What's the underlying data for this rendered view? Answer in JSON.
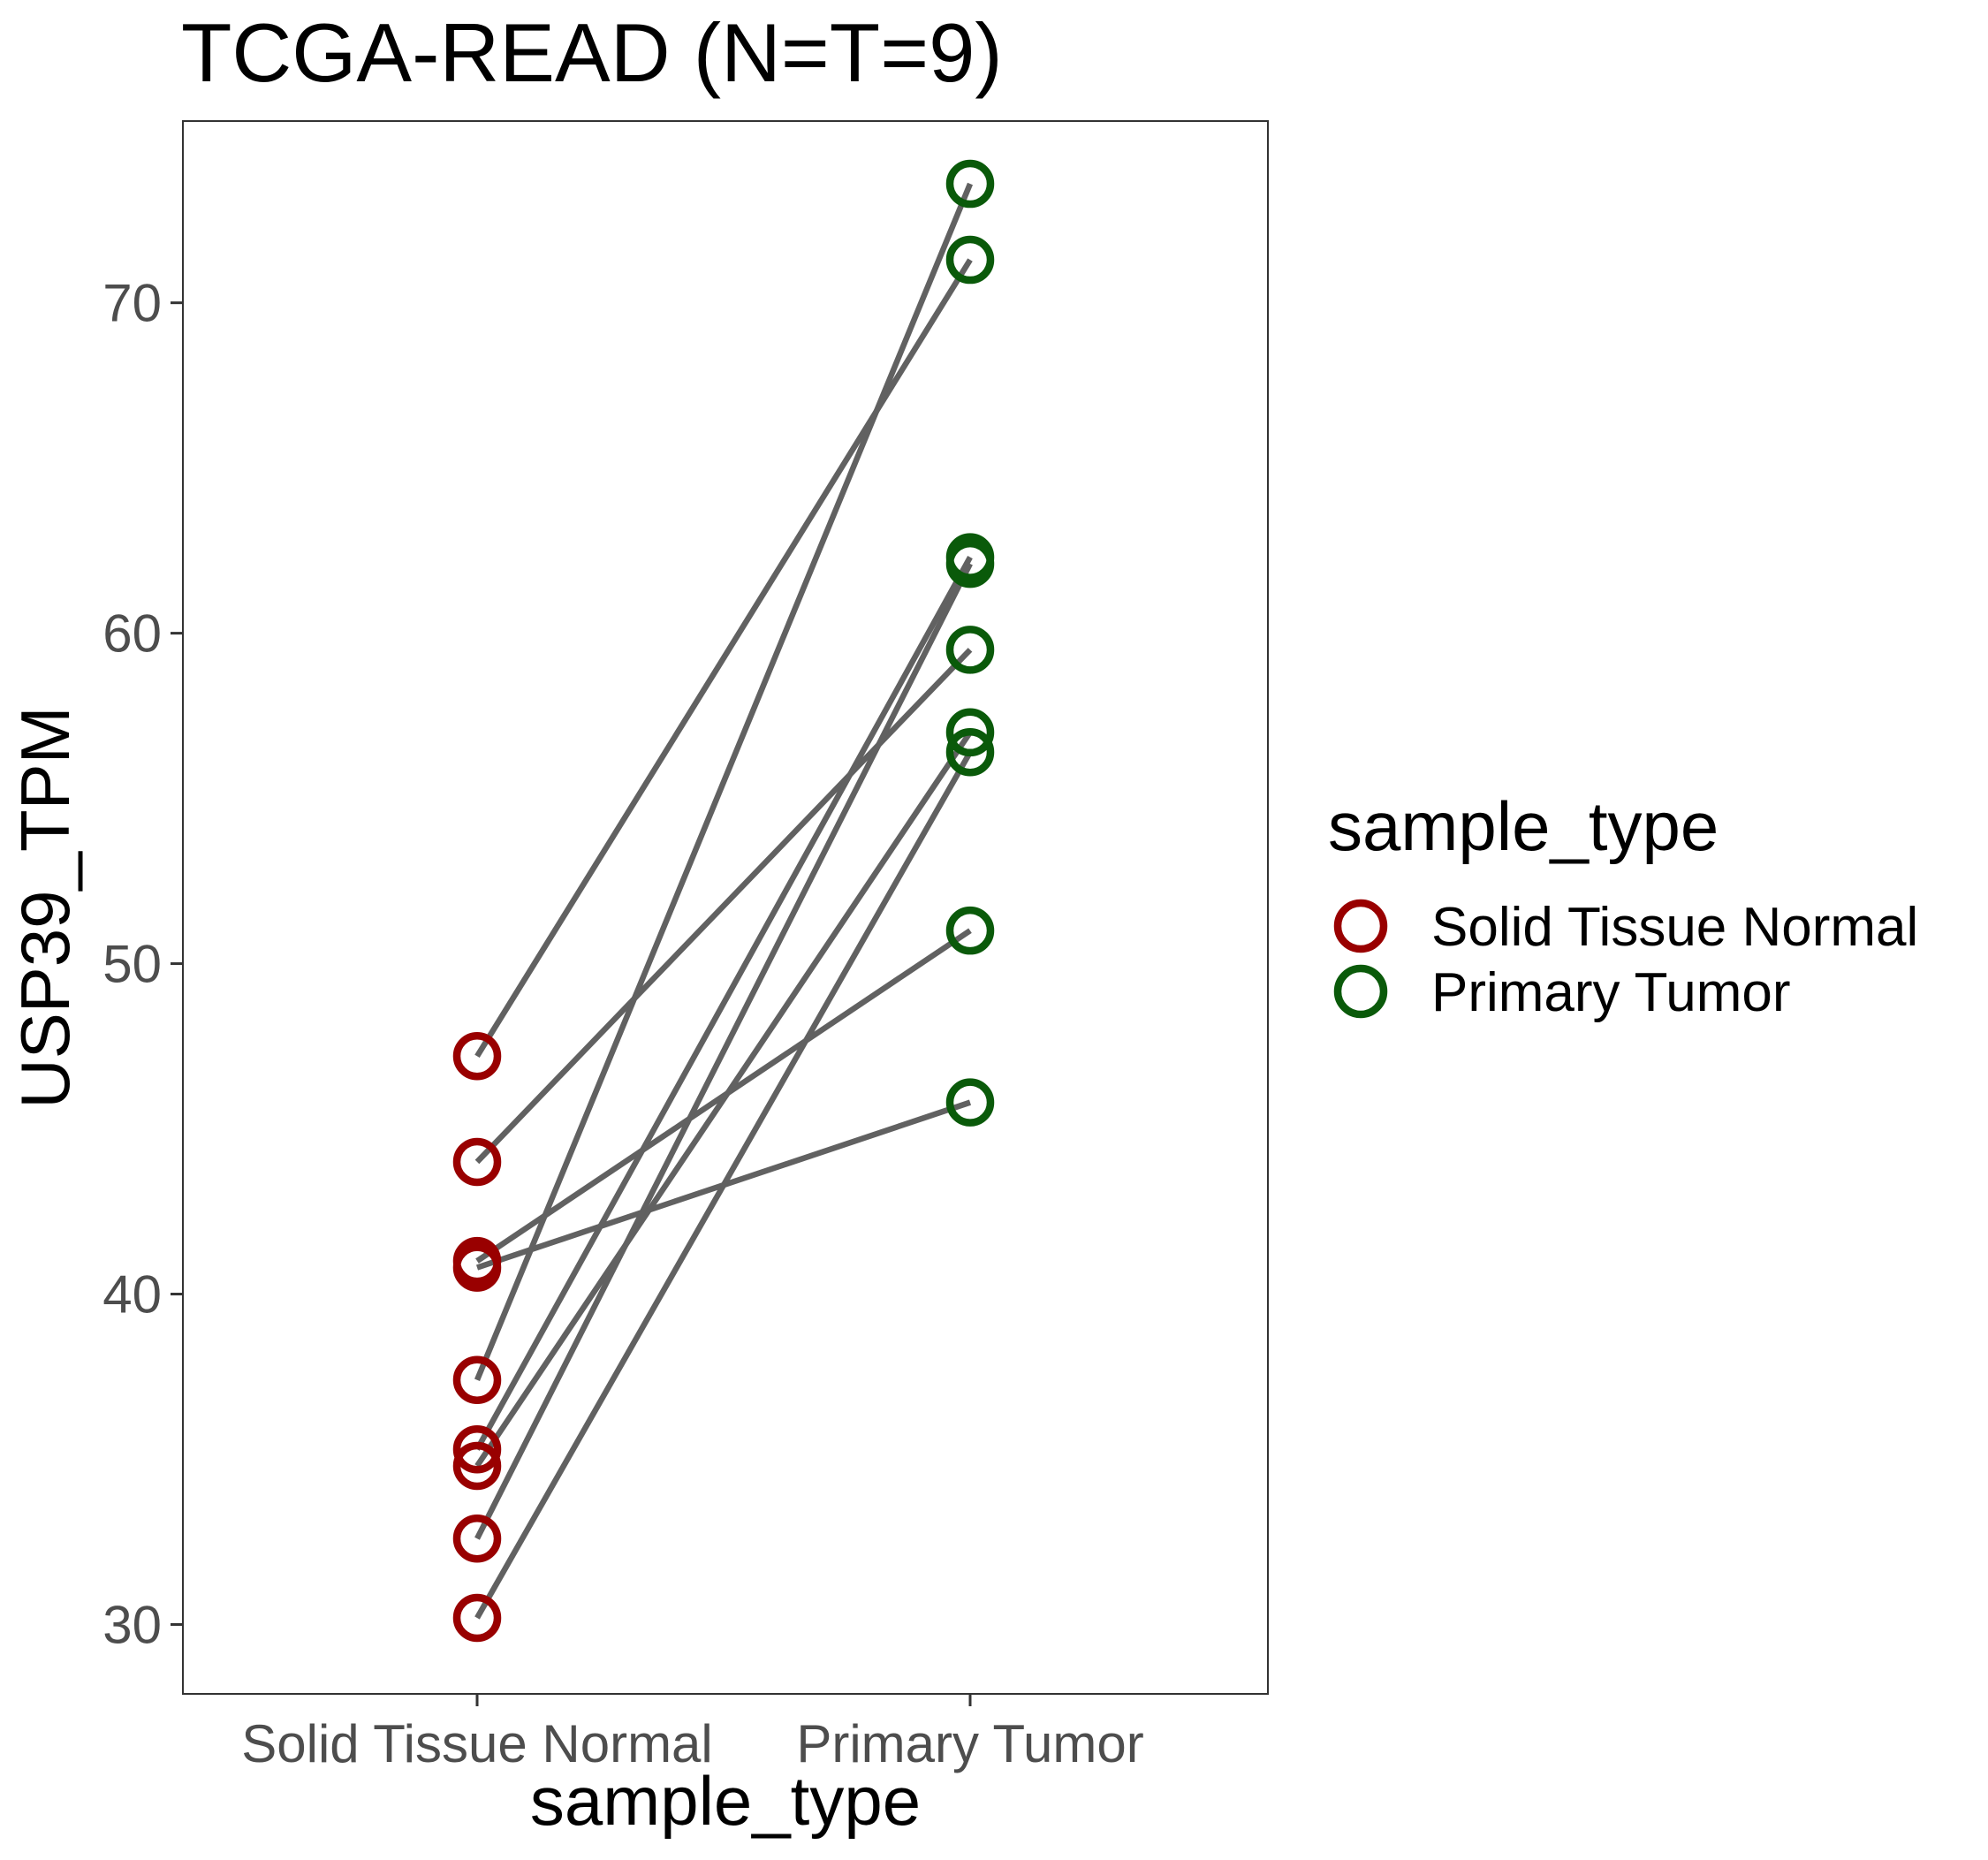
{
  "chart_data": {
    "type": "line",
    "title": "TCGA-READ  (N=T=9)",
    "xlabel": "sample_type",
    "ylabel": "USP39_TPM",
    "categories": [
      "Solid Tissue Normal",
      "Primary Tumor"
    ],
    "ylim": [
      27.9,
      75.5
    ],
    "yticks": [
      30,
      40,
      50,
      60,
      70
    ],
    "grid": false,
    "legend": {
      "title": "sample_type",
      "position": "right",
      "entries": [
        {
          "label": "Solid Tissue Normal",
          "color": "#990000"
        },
        {
          "label": "Primary Tumor",
          "color": "#0a5a0a"
        }
      ]
    },
    "pairs": [
      {
        "normal": 47.2,
        "tumor": 71.3
      },
      {
        "normal": 44.0,
        "tumor": 59.5
      },
      {
        "normal": 41.0,
        "tumor": 51.0
      },
      {
        "normal": 40.8,
        "tumor": 45.8
      },
      {
        "normal": 37.4,
        "tumor": 73.6
      },
      {
        "normal": 35.3,
        "tumor": 62.3
      },
      {
        "normal": 34.8,
        "tumor": 57.0
      },
      {
        "normal": 32.6,
        "tumor": 62.1
      },
      {
        "normal": 30.2,
        "tumor": 56.4
      }
    ],
    "line_color": "#616161"
  }
}
